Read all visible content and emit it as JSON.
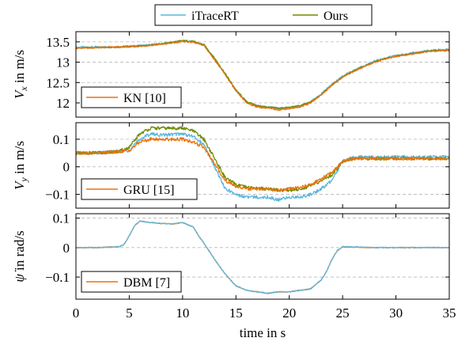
{
  "chart_data": {
    "type": "line",
    "xlabel": "time in s",
    "xlim": [
      0,
      35
    ],
    "xticks": [
      0,
      5,
      10,
      15,
      20,
      25,
      30,
      35
    ],
    "grid": "horizontal dashed",
    "top_legend": {
      "placement": "top-center",
      "entries": [
        {
          "name": "iTraceRT",
          "color": "#5bb6de"
        },
        {
          "name": "Ours",
          "color": "#6e8a00"
        }
      ]
    },
    "panels": [
      {
        "ylabel": "V_x in m/s",
        "ylim": [
          11.65,
          13.75
        ],
        "yticks": [
          12,
          12.5,
          13,
          13.5
        ],
        "ytick_labels": [
          "12",
          "12.5",
          "13",
          "13.5"
        ],
        "legend": {
          "placement": "bottom-left",
          "name": "KN [10]",
          "color": "#e8730f"
        },
        "series": [
          {
            "name": "iTraceRT",
            "color": "#5bb6de",
            "x": [
              0,
              2,
              4,
              6,
              8,
              9,
              10,
              11,
              12,
              13,
              14,
              15,
              16,
              17,
              18,
              19,
              20,
              21,
              22,
              23,
              24,
              25,
              26,
              27,
              28,
              29,
              30,
              31,
              32,
              33,
              34,
              35
            ],
            "y": [
              13.36,
              13.37,
              13.38,
              13.4,
              13.45,
              13.48,
              13.52,
              13.5,
              13.42,
              13.08,
              12.7,
              12.3,
              12.02,
              11.92,
              11.89,
              11.86,
              11.88,
              11.92,
              12.02,
              12.22,
              12.45,
              12.65,
              12.79,
              12.91,
              13.02,
              13.1,
              13.16,
              13.2,
              13.24,
              13.28,
              13.3,
              13.31
            ]
          },
          {
            "name": "Ours",
            "color": "#6e8a00",
            "x": [
              0,
              2,
              4,
              6,
              8,
              9,
              10,
              11,
              12,
              13,
              14,
              15,
              16,
              17,
              18,
              19,
              20,
              21,
              22,
              23,
              24,
              25,
              26,
              27,
              28,
              29,
              30,
              31,
              32,
              33,
              34,
              35
            ],
            "y": [
              13.35,
              13.36,
              13.37,
              13.4,
              13.45,
              13.49,
              13.53,
              13.51,
              13.43,
              13.1,
              12.72,
              12.32,
              12.03,
              11.93,
              11.9,
              11.87,
              11.89,
              11.93,
              12.02,
              12.21,
              12.44,
              12.64,
              12.78,
              12.9,
              13.01,
              13.09,
              13.15,
              13.19,
              13.23,
              13.27,
              13.29,
              13.3
            ]
          },
          {
            "name": "KN [10]",
            "color": "#e8730f",
            "x": [
              0,
              2,
              4,
              6,
              8,
              9,
              10,
              11,
              12,
              13,
              14,
              15,
              16,
              17,
              18,
              19,
              20,
              21,
              22,
              23,
              24,
              25,
              26,
              27,
              28,
              29,
              30,
              31,
              32,
              33,
              34,
              35
            ],
            "y": [
              13.34,
              13.36,
              13.37,
              13.39,
              13.44,
              13.47,
              13.51,
              13.49,
              13.41,
              13.06,
              12.69,
              12.29,
              12.0,
              11.9,
              11.87,
              11.83,
              11.86,
              11.9,
              12.0,
              12.2,
              12.43,
              12.63,
              12.77,
              12.89,
              13.0,
              13.08,
              13.14,
              13.18,
              13.22,
              13.26,
              13.28,
              13.29
            ]
          }
        ]
      },
      {
        "ylabel": "V_y in m/s",
        "ylim": [
          -0.15,
          0.16
        ],
        "yticks": [
          -0.1,
          0,
          0.1
        ],
        "ytick_labels": [
          "−0.1",
          "0",
          "0.1"
        ],
        "legend": {
          "placement": "bottom-left",
          "name": "GRU [15]",
          "color": "#e8730f"
        },
        "series": [
          {
            "name": "iTraceRT",
            "color": "#5bb6de",
            "x": [
              0,
              2,
              4,
              5,
              6,
              7,
              8,
              10,
              11,
              12,
              13,
              14,
              15,
              16,
              17,
              18,
              19,
              20,
              21,
              22,
              23,
              24,
              25,
              26,
              28,
              30,
              32,
              35
            ],
            "y": [
              0.05,
              0.05,
              0.055,
              0.06,
              0.1,
              0.12,
              0.115,
              0.12,
              0.11,
              0.08,
              0.0,
              -0.08,
              -0.1,
              -0.11,
              -0.11,
              -0.11,
              -0.12,
              -0.11,
              -0.11,
              -0.1,
              -0.08,
              -0.05,
              0.02,
              0.035,
              0.035,
              0.035,
              0.035,
              0.035
            ]
          },
          {
            "name": "Ours",
            "color": "#6e8a00",
            "x": [
              0,
              2,
              4,
              5,
              6,
              7,
              8,
              10,
              11,
              12,
              13,
              14,
              15,
              16,
              17,
              18,
              19,
              20,
              21,
              22,
              23,
              24,
              25,
              26,
              28,
              30,
              32,
              35
            ],
            "y": [
              0.05,
              0.05,
              0.055,
              0.07,
              0.12,
              0.14,
              0.14,
              0.14,
              0.13,
              0.1,
              0.03,
              -0.04,
              -0.065,
              -0.075,
              -0.078,
              -0.08,
              -0.085,
              -0.085,
              -0.08,
              -0.07,
              -0.05,
              -0.03,
              0.02,
              0.03,
              0.03,
              0.03,
              0.03,
              0.03
            ]
          },
          {
            "name": "GRU [15]",
            "color": "#e8730f",
            "x": [
              0,
              2,
              4,
              5,
              6,
              7,
              8,
              10,
              11,
              12,
              13,
              14,
              15,
              16,
              17,
              18,
              19,
              20,
              21,
              22,
              23,
              24,
              25,
              26,
              28,
              30,
              32,
              35
            ],
            "y": [
              0.05,
              0.05,
              0.055,
              0.06,
              0.09,
              0.1,
              0.1,
              0.1,
              0.09,
              0.07,
              0.01,
              -0.05,
              -0.07,
              -0.08,
              -0.08,
              -0.08,
              -0.085,
              -0.08,
              -0.075,
              -0.065,
              -0.045,
              -0.02,
              0.02,
              0.03,
              0.03,
              0.03,
              0.03,
              0.03
            ]
          }
        ]
      },
      {
        "ylabel": "ψ̇ in rad/s",
        "ylim": [
          -0.175,
          0.115
        ],
        "yticks": [
          -0.1,
          0,
          0.1
        ],
        "ytick_labels": [
          "−0.1",
          "0",
          "0.1"
        ],
        "legend": {
          "placement": "bottom-left",
          "name": "DBM [7]",
          "color": "#e8730f"
        },
        "series": [
          {
            "name": "DBM [7]",
            "color": "#e8730f",
            "x": [
              0,
              2,
              4,
              4.5,
              5,
              5.5,
              6,
              7,
              8,
              9,
              10,
              11,
              11.5,
              12,
              13,
              14,
              15,
              16,
              17,
              18,
              19,
              20,
              21,
              22,
              22.5,
              23,
              23.5,
              24,
              24.5,
              25,
              26,
              28,
              30,
              32,
              35
            ],
            "y": [
              0.0,
              0.0,
              0.003,
              0.01,
              0.04,
              0.075,
              0.09,
              0.085,
              0.082,
              0.08,
              0.085,
              0.07,
              0.04,
              0.015,
              -0.04,
              -0.09,
              -0.13,
              -0.145,
              -0.15,
              -0.155,
              -0.15,
              -0.15,
              -0.145,
              -0.14,
              -0.125,
              -0.11,
              -0.08,
              -0.04,
              -0.01,
              0.003,
              0.002,
              0.0,
              0.0,
              0.0,
              0.0
            ]
          },
          {
            "name": "iTraceRT",
            "color": "#5bb6de",
            "x": [
              0,
              2,
              4,
              4.5,
              5,
              5.5,
              6,
              7,
              8,
              9,
              10,
              11,
              11.5,
              12,
              13,
              14,
              15,
              16,
              17,
              18,
              19,
              20,
              21,
              22,
              22.5,
              23,
              23.5,
              24,
              24.5,
              25,
              26,
              28,
              30,
              32,
              35
            ],
            "y": [
              0.0,
              0.0,
              0.003,
              0.01,
              0.04,
              0.075,
              0.09,
              0.085,
              0.082,
              0.08,
              0.085,
              0.07,
              0.04,
              0.015,
              -0.04,
              -0.09,
              -0.13,
              -0.145,
              -0.15,
              -0.155,
              -0.15,
              -0.15,
              -0.145,
              -0.14,
              -0.125,
              -0.11,
              -0.08,
              -0.04,
              -0.01,
              0.003,
              0.002,
              0.0,
              0.0,
              0.0,
              0.0
            ]
          }
        ]
      }
    ]
  }
}
